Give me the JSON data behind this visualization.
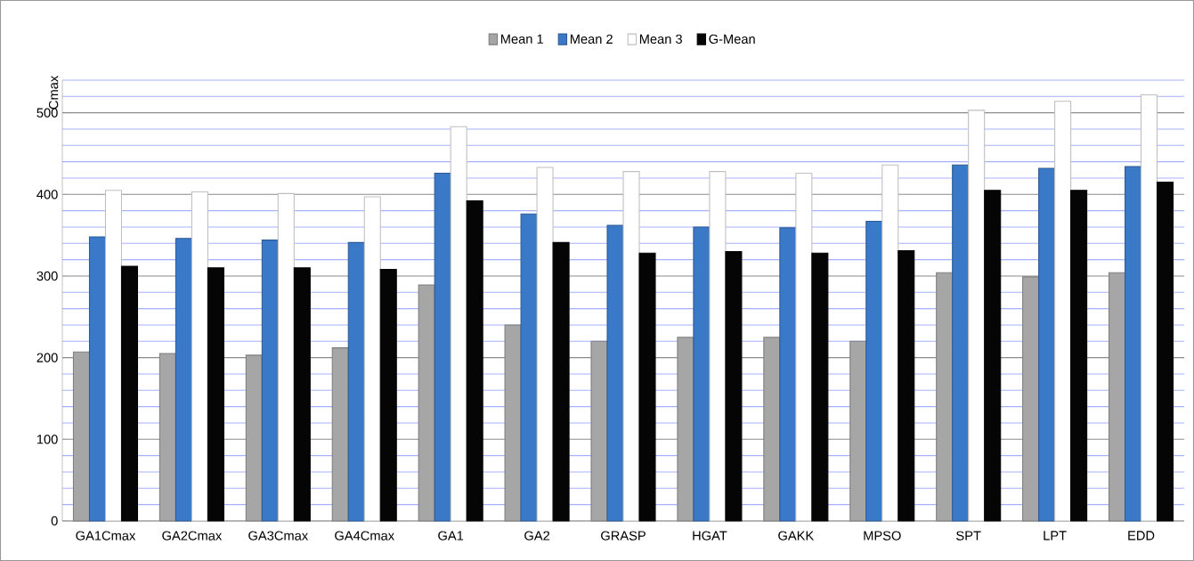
{
  "chart_data": {
    "type": "bar",
    "ylabel": "Cmax",
    "categories": [
      "GA1Cmax",
      "GA2Cmax",
      "GA3Cmax",
      "GA4Cmax",
      "GA1",
      "GA2",
      "GRASP",
      "HGAT",
      "GAKK",
      "MPSO",
      "SPT",
      "LPT",
      "EDD"
    ],
    "series": [
      {
        "name": "Mean 1",
        "color": "#a6a6a6",
        "values": [
          207,
          205,
          203,
          212,
          289,
          240,
          220,
          225,
          225,
          220,
          304,
          299,
          304
        ]
      },
      {
        "name": "Mean 2",
        "color": "#3a78c8",
        "values": [
          348,
          346,
          344,
          341,
          426,
          376,
          362,
          360,
          359,
          367,
          436,
          432,
          434
        ]
      },
      {
        "name": "Mean 3",
        "color": "#ffffff",
        "values": [
          405,
          403,
          401,
          397,
          483,
          433,
          428,
          428,
          426,
          436,
          503,
          514,
          522
        ]
      },
      {
        "name": "G-Mean",
        "color": "#050505",
        "values": [
          312,
          310,
          310,
          308,
          392,
          341,
          328,
          330,
          328,
          331,
          405,
          405,
          415
        ]
      }
    ],
    "ylim": [
      0,
      540
    ],
    "yticks": [
      0,
      {
        "value": 20,
        "label": null
      },
      {
        "value": 40,
        "label": null
      },
      {
        "value": 60,
        "label": null
      },
      {
        "value": 80,
        "label": null
      },
      100,
      {
        "value": 120,
        "label": null
      },
      {
        "value": 140,
        "label": null
      },
      {
        "value": 160,
        "label": null
      },
      {
        "value": 180,
        "label": null
      },
      200,
      {
        "value": 220,
        "label": null
      },
      {
        "value": 240,
        "label": null
      },
      {
        "value": 260,
        "label": null
      },
      {
        "value": 280,
        "label": null
      },
      300,
      {
        "value": 320,
        "label": null
      },
      {
        "value": 340,
        "label": null
      },
      {
        "value": 360,
        "label": null
      },
      {
        "value": 380,
        "label": null
      },
      400,
      {
        "value": 420,
        "label": null
      },
      {
        "value": 440,
        "label": null
      },
      {
        "value": 460,
        "label": null
      },
      {
        "value": 480,
        "label": null
      },
      500,
      {
        "value": 520,
        "label": null
      },
      {
        "value": 540,
        "label": null
      }
    ],
    "grid": true,
    "legend": "top"
  }
}
